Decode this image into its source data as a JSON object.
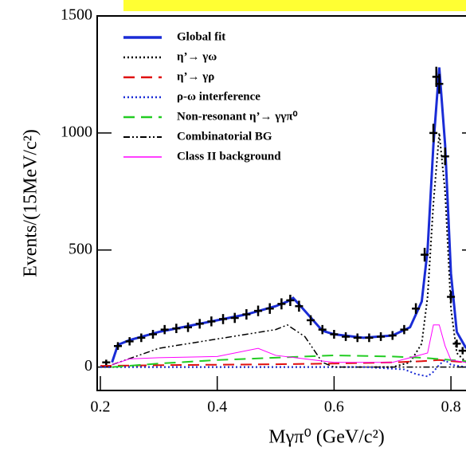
{
  "chart_data": {
    "type": "line",
    "y_label": "Events/(15MeV/c²)",
    "x_label": "Mγπ⁰ (GeV/c²)",
    "xlim": [
      0.195,
      0.826
    ],
    "ylim": [
      -100,
      1500
    ],
    "xticks": [
      0.2,
      0.4,
      0.6,
      0.8
    ],
    "yticks": [
      0,
      500,
      1000,
      1500
    ],
    "data": {
      "x": [
        0.21,
        0.23,
        0.25,
        0.27,
        0.29,
        0.31,
        0.33,
        0.35,
        0.37,
        0.39,
        0.41,
        0.43,
        0.45,
        0.47,
        0.49,
        0.51,
        0.525,
        0.54,
        0.56,
        0.58,
        0.6,
        0.62,
        0.64,
        0.66,
        0.68,
        0.7,
        0.72,
        0.74,
        0.755,
        0.77,
        0.775,
        0.78,
        0.79,
        0.8,
        0.81,
        0.82
      ],
      "values": [
        20,
        90,
        110,
        125,
        140,
        160,
        165,
        170,
        185,
        195,
        205,
        210,
        225,
        240,
        250,
        270,
        285,
        260,
        200,
        160,
        140,
        130,
        125,
        125,
        130,
        135,
        160,
        250,
        480,
        1000,
        1240,
        1210,
        900,
        300,
        100,
        70
      ],
      "color": "#000000"
    },
    "series": [
      {
        "name": "Global fit",
        "color": "#1a2cd6",
        "style": "solid",
        "width": 3,
        "x": [
          0.22,
          0.23,
          0.25,
          0.3,
          0.35,
          0.4,
          0.45,
          0.5,
          0.52,
          0.53,
          0.55,
          0.58,
          0.6,
          0.65,
          0.7,
          0.73,
          0.75,
          0.76,
          0.77,
          0.78,
          0.79,
          0.8,
          0.81,
          0.826
        ],
        "values": [
          20,
          95,
          115,
          150,
          175,
          200,
          225,
          260,
          280,
          295,
          240,
          155,
          140,
          125,
          135,
          170,
          280,
          500,
          950,
          1280,
          950,
          400,
          150,
          80
        ]
      },
      {
        "name": "η’→ γω",
        "color": "#000000",
        "style": "dotted",
        "width": 2,
        "x": [
          0.2,
          0.6,
          0.7,
          0.73,
          0.75,
          0.76,
          0.77,
          0.78,
          0.79,
          0.8,
          0.81,
          0.826
        ],
        "values": [
          0,
          0,
          0,
          20,
          100,
          300,
          700,
          1000,
          750,
          250,
          60,
          20
        ]
      },
      {
        "name": "η’→ γρ",
        "color": "#e01010",
        "style": "dashed",
        "width": 2,
        "x": [
          0.2,
          0.3,
          0.4,
          0.5,
          0.6,
          0.7,
          0.75,
          0.78,
          0.826
        ],
        "values": [
          5,
          8,
          10,
          12,
          15,
          20,
          25,
          30,
          20
        ]
      },
      {
        "name": "ρ-ω interference",
        "color": "#1a2cd6",
        "style": "dotted",
        "width": 2,
        "x": [
          0.2,
          0.65,
          0.72,
          0.74,
          0.76,
          0.77,
          0.78,
          0.79,
          0.8,
          0.826
        ],
        "values": [
          0,
          0,
          -10,
          -30,
          -40,
          -20,
          10,
          30,
          10,
          0
        ]
      },
      {
        "name": "Non-resonant η’→ γγπ⁰",
        "color": "#22cc22",
        "style": "dashed",
        "width": 2,
        "x": [
          0.22,
          0.3,
          0.4,
          0.5,
          0.6,
          0.7,
          0.75,
          0.8,
          0.826
        ],
        "values": [
          0,
          15,
          30,
          40,
          50,
          45,
          40,
          30,
          25
        ]
      },
      {
        "name": "Combinatorial BG",
        "color": "#000000",
        "style": "dashdot",
        "width": 1.5,
        "x": [
          0.22,
          0.3,
          0.4,
          0.5,
          0.52,
          0.55,
          0.58,
          0.6,
          0.826
        ],
        "values": [
          10,
          80,
          120,
          160,
          180,
          130,
          20,
          0,
          0
        ]
      },
      {
        "name": "Class II background",
        "color": "#ff00ff",
        "style": "solid",
        "width": 1,
        "x": [
          0.22,
          0.25,
          0.3,
          0.4,
          0.47,
          0.5,
          0.55,
          0.6,
          0.7,
          0.76,
          0.77,
          0.78,
          0.79,
          0.8,
          0.826
        ],
        "values": [
          10,
          35,
          40,
          45,
          80,
          50,
          35,
          20,
          20,
          60,
          180,
          180,
          90,
          30,
          20
        ]
      }
    ]
  }
}
